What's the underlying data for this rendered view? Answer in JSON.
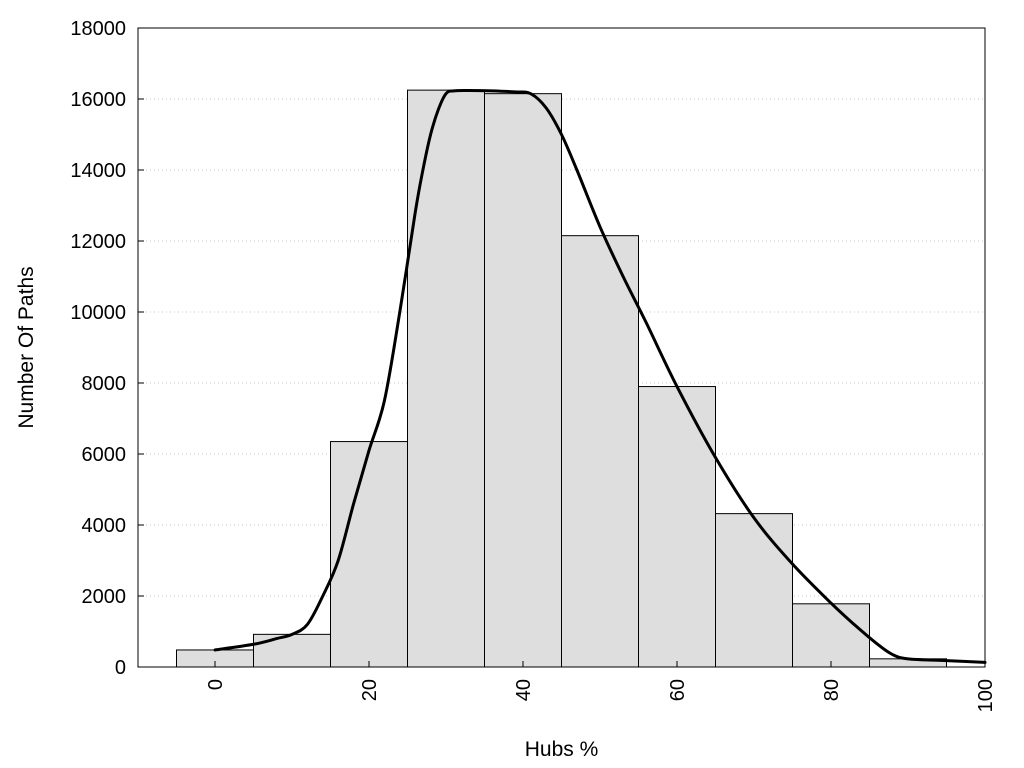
{
  "chart_data": {
    "type": "bar",
    "title": "",
    "xlabel": "Hubs %",
    "ylabel": "Number Of Paths",
    "xlim": [
      -10,
      100
    ],
    "ylim": [
      0,
      18000
    ],
    "x_ticks": [
      0,
      20,
      40,
      60,
      80,
      100
    ],
    "y_ticks": [
      0,
      2000,
      4000,
      6000,
      8000,
      10000,
      12000,
      14000,
      16000,
      18000
    ],
    "grid": "horizontal dotted",
    "legend": "none",
    "bin_width": 10,
    "bar_color": "#dedede",
    "bar_edge_color": "#000000",
    "curve_color": "#000000",
    "bars": [
      {
        "x": 0,
        "value": 480
      },
      {
        "x": 10,
        "value": 920
      },
      {
        "x": 20,
        "value": 6350
      },
      {
        "x": 30,
        "value": 16250
      },
      {
        "x": 40,
        "value": 16150
      },
      {
        "x": 50,
        "value": 12150
      },
      {
        "x": 60,
        "value": 7900
      },
      {
        "x": 70,
        "value": 4320
      },
      {
        "x": 80,
        "value": 1780
      },
      {
        "x": 90,
        "value": 230
      }
    ],
    "curve": [
      {
        "x": 0,
        "y": 480
      },
      {
        "x": 5,
        "y": 640
      },
      {
        "x": 8,
        "y": 800
      },
      {
        "x": 10,
        "y": 920
      },
      {
        "x": 12,
        "y": 1200
      },
      {
        "x": 14,
        "y": 2000
      },
      {
        "x": 16,
        "y": 3000
      },
      {
        "x": 18,
        "y": 4600
      },
      {
        "x": 20,
        "y": 6100
      },
      {
        "x": 22,
        "y": 7500
      },
      {
        "x": 24,
        "y": 10000
      },
      {
        "x": 26,
        "y": 12800
      },
      {
        "x": 27,
        "y": 14000
      },
      {
        "x": 28,
        "y": 15000
      },
      {
        "x": 29,
        "y": 15700
      },
      {
        "x": 30,
        "y": 16150
      },
      {
        "x": 31,
        "y": 16230
      },
      {
        "x": 33,
        "y": 16240
      },
      {
        "x": 36,
        "y": 16230
      },
      {
        "x": 39,
        "y": 16200
      },
      {
        "x": 41,
        "y": 16150
      },
      {
        "x": 43,
        "y": 15750
      },
      {
        "x": 45,
        "y": 15000
      },
      {
        "x": 47,
        "y": 14000
      },
      {
        "x": 50,
        "y": 12400
      },
      {
        "x": 53,
        "y": 11000
      },
      {
        "x": 56,
        "y": 9700
      },
      {
        "x": 60,
        "y": 7900
      },
      {
        "x": 65,
        "y": 5900
      },
      {
        "x": 70,
        "y": 4200
      },
      {
        "x": 75,
        "y": 2900
      },
      {
        "x": 80,
        "y": 1800
      },
      {
        "x": 83,
        "y": 1200
      },
      {
        "x": 86,
        "y": 650
      },
      {
        "x": 88,
        "y": 350
      },
      {
        "x": 90,
        "y": 230
      },
      {
        "x": 95,
        "y": 180
      },
      {
        "x": 100,
        "y": 130
      }
    ]
  }
}
